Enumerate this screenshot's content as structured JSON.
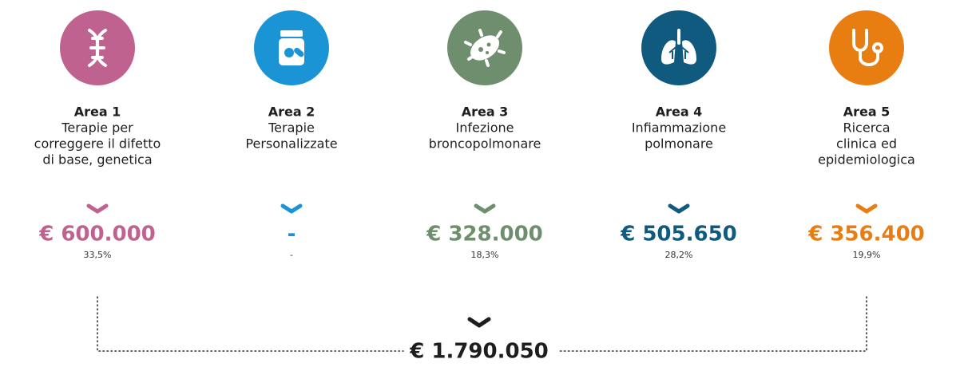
{
  "areas": [
    {
      "title": "Area 1",
      "description": [
        "Terapie per",
        "correggere il difetto",
        "di base, genetica"
      ],
      "amount": "€ 600.000",
      "percent": "33,5%",
      "color": "#c0628f"
    },
    {
      "title": "Area 2",
      "description": [
        "Terapie",
        "Personalizzate"
      ],
      "amount": "-",
      "percent": "-",
      "color": "#1b94d6"
    },
    {
      "title": "Area 3",
      "description": [
        "Infezione",
        "broncopolmonare"
      ],
      "amount": "€ 328.000",
      "percent": "18,3%",
      "color": "#6e8e6d"
    },
    {
      "title": "Area 4",
      "description": [
        "Infiammazione",
        "polmonare"
      ],
      "amount": "€ 505.650",
      "percent": "28,2%",
      "color": "#105a80"
    },
    {
      "title": "Area 5",
      "description": [
        "Ricerca",
        "clinica ed",
        "epidemiologica"
      ],
      "amount": "€ 356.400",
      "percent": "19,9%",
      "color": "#e87e12"
    }
  ],
  "total": "€ 1.790.050"
}
